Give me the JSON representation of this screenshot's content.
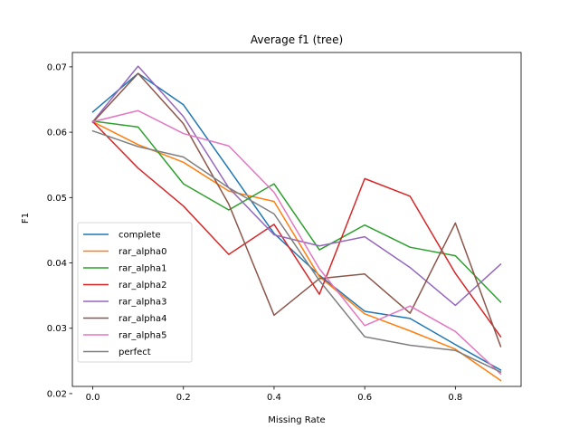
{
  "chart_data": {
    "type": "line",
    "title": "Average f1 (tree)",
    "xlabel": "Missing Rate",
    "ylabel": "F1",
    "x": [
      0.0,
      0.1,
      0.2,
      0.3,
      0.4,
      0.5,
      0.6,
      0.7,
      0.8,
      0.9
    ],
    "xlim": [
      -0.045,
      0.945
    ],
    "ylim": [
      0.0211,
      0.0722
    ],
    "xticks": [
      0.0,
      0.2,
      0.4,
      0.6,
      0.8
    ],
    "xtick_labels": [
      "0.0",
      "0.2",
      "0.4",
      "0.6",
      "0.8"
    ],
    "yticks": [
      0.02,
      0.03,
      0.04,
      0.05,
      0.06,
      0.07
    ],
    "ytick_labels": [
      "0.02",
      "0.03",
      "0.04",
      "0.05",
      "0.06",
      "0.07"
    ],
    "grid": false,
    "legend_position": "lower-left",
    "series": [
      {
        "name": "complete",
        "color": "#1f77b4",
        "values": [
          0.0631,
          0.069,
          0.0642,
          0.0544,
          0.0445,
          0.0381,
          0.0326,
          0.0315,
          0.0275,
          0.0236
        ]
      },
      {
        "name": "rar_alpha0",
        "color": "#ff7f0e",
        "values": [
          0.0616,
          0.0581,
          0.0554,
          0.051,
          0.0494,
          0.0379,
          0.0322,
          0.0296,
          0.0268,
          0.022
        ]
      },
      {
        "name": "rar_alpha1",
        "color": "#2ca02c",
        "values": [
          0.0617,
          0.0608,
          0.0521,
          0.0481,
          0.0521,
          0.042,
          0.0458,
          0.0424,
          0.0411,
          0.034
        ]
      },
      {
        "name": "rar_alpha2",
        "color": "#d62728",
        "values": [
          0.0616,
          0.0545,
          0.0487,
          0.0413,
          0.0459,
          0.0352,
          0.0529,
          0.0502,
          0.0384,
          0.0287
        ]
      },
      {
        "name": "rar_alpha3",
        "color": "#9467bd",
        "values": [
          0.0616,
          0.0701,
          0.0624,
          0.0515,
          0.0443,
          0.0426,
          0.044,
          0.0393,
          0.0335,
          0.0398
        ]
      },
      {
        "name": "rar_alpha4",
        "color": "#8c564b",
        "values": [
          0.0615,
          0.069,
          0.0613,
          0.049,
          0.032,
          0.0376,
          0.0383,
          0.0323,
          0.0461,
          0.0272
        ]
      },
      {
        "name": "rar_alpha5",
        "color": "#e377c2",
        "values": [
          0.0616,
          0.0633,
          0.0598,
          0.0579,
          0.0508,
          0.0391,
          0.0304,
          0.0334,
          0.0295,
          0.023
        ]
      },
      {
        "name": "perfect",
        "color": "#7f7f7f",
        "values": [
          0.0602,
          0.0578,
          0.0562,
          0.0515,
          0.0475,
          0.0373,
          0.0287,
          0.0274,
          0.0266,
          0.0233
        ]
      }
    ]
  }
}
